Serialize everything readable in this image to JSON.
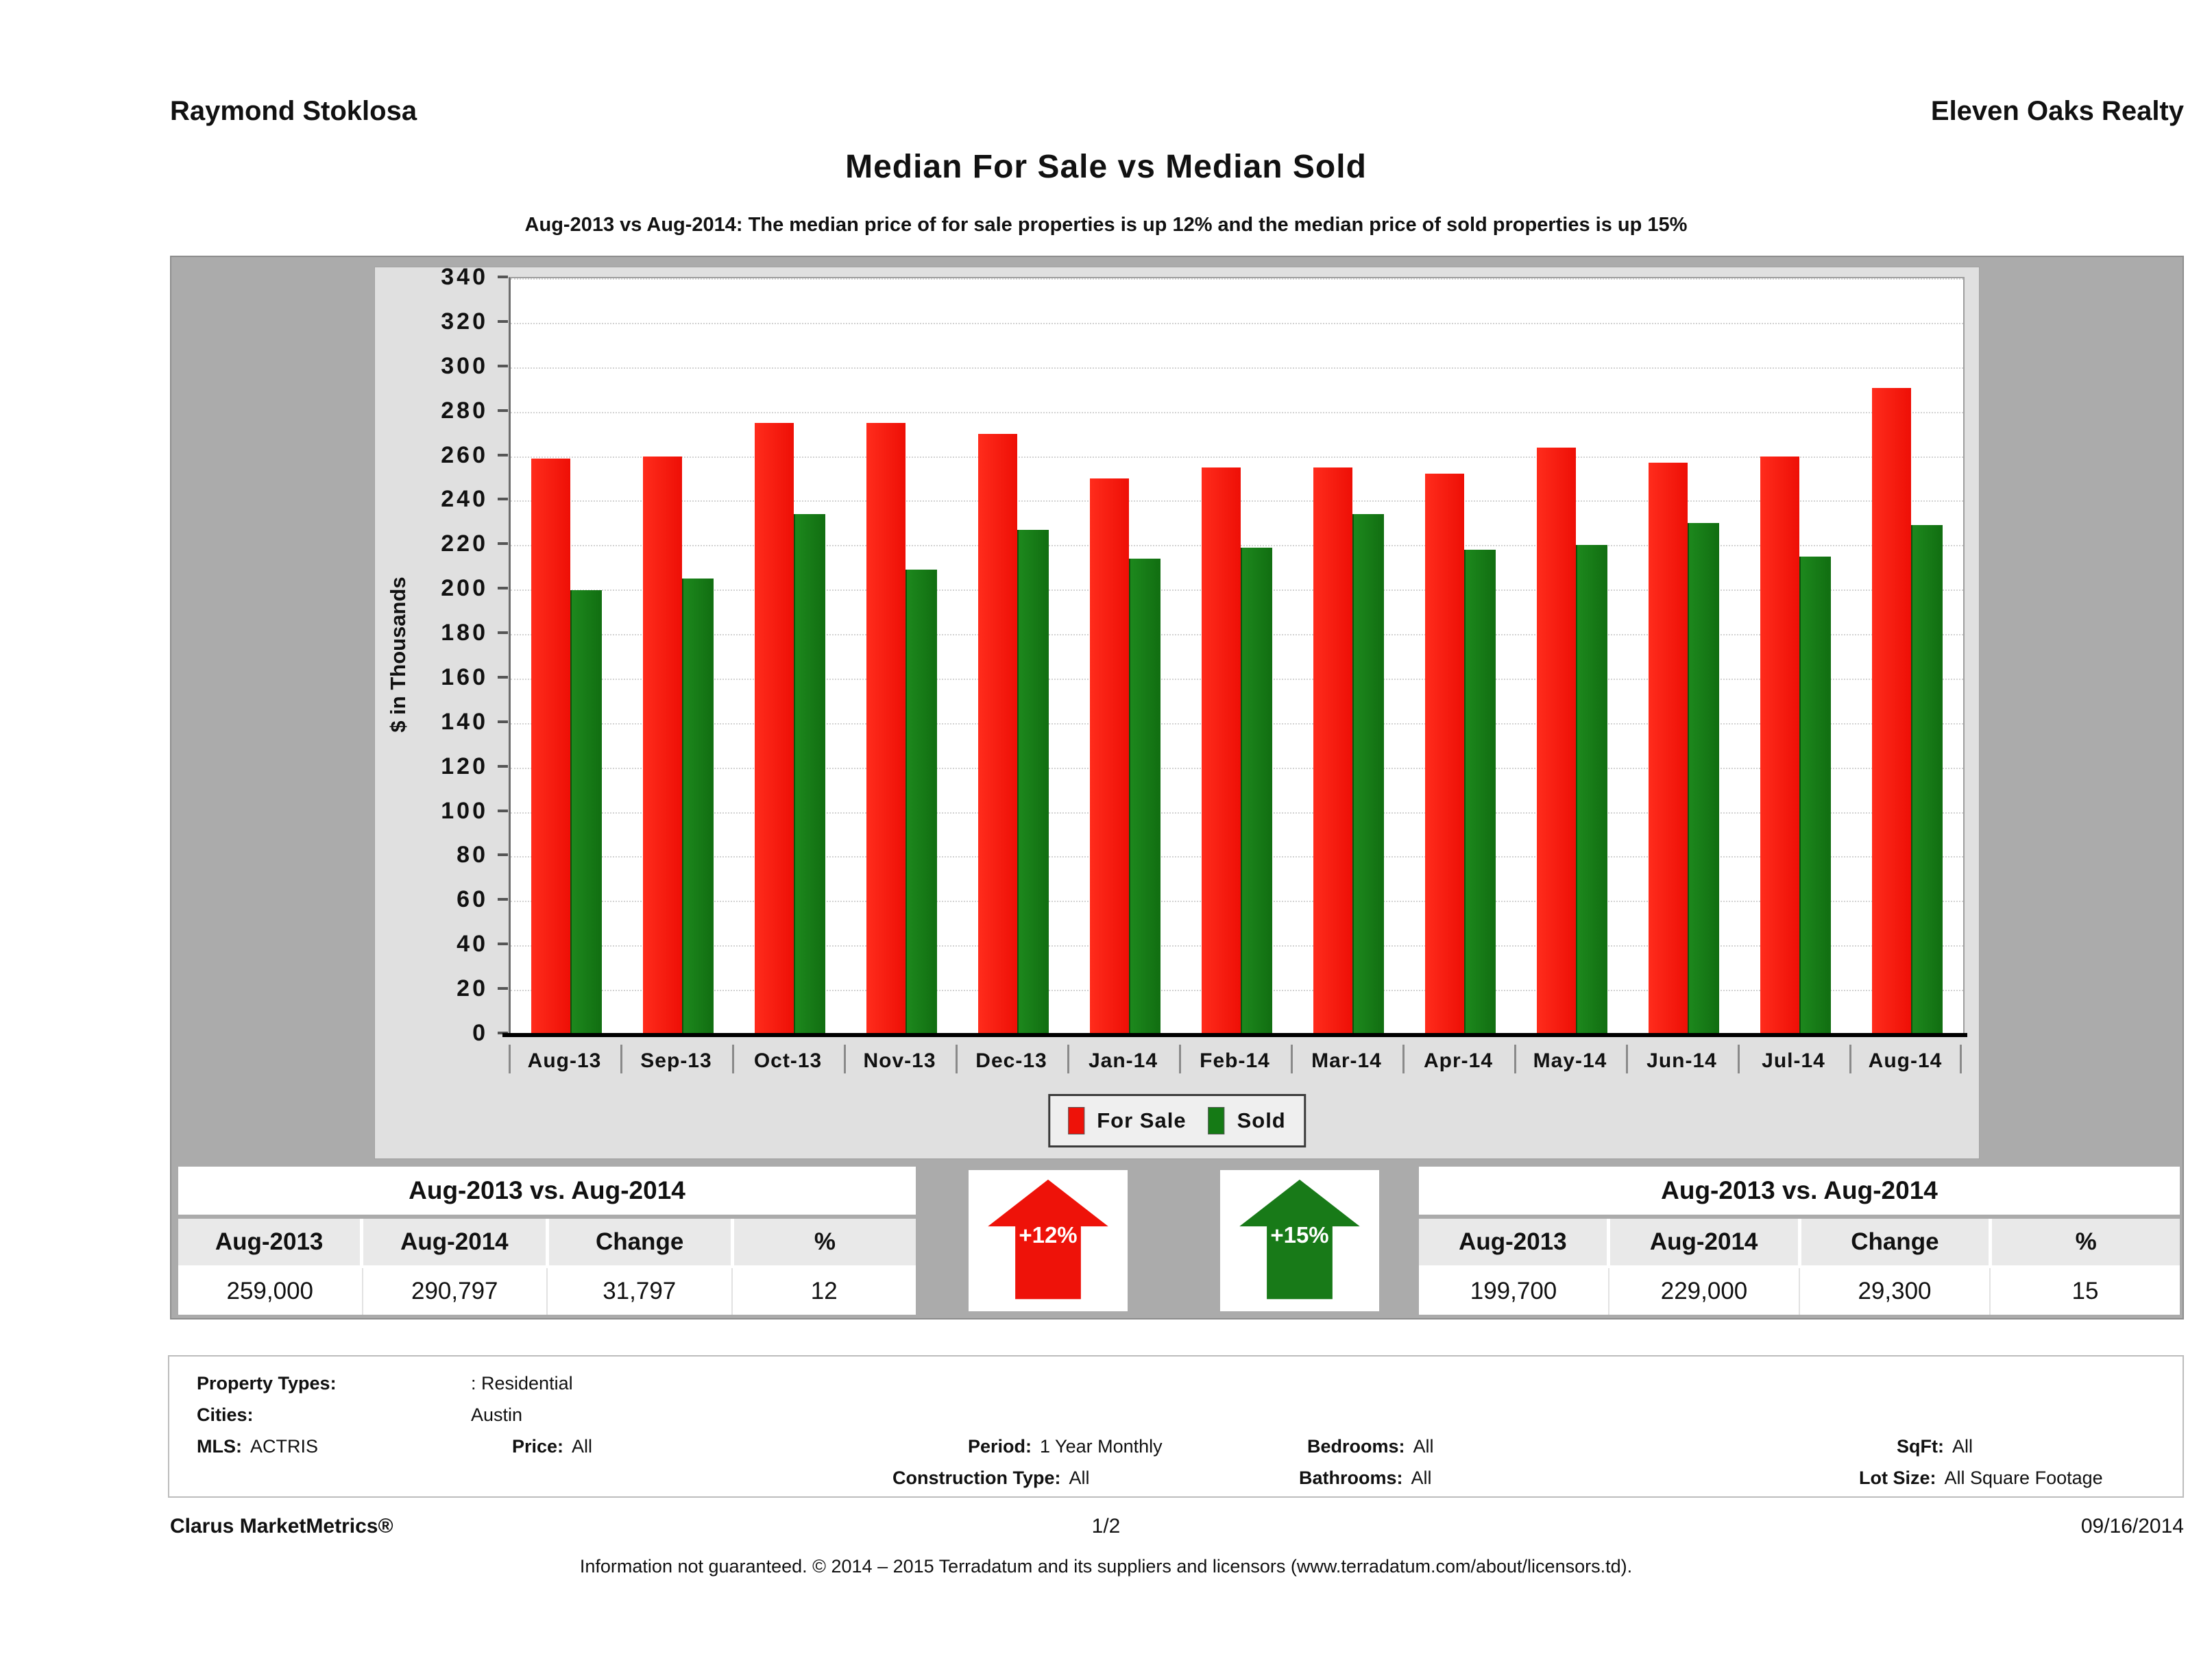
{
  "header": {
    "agent": "Raymond Stoklosa",
    "company": "Eleven Oaks Realty"
  },
  "title": "Median For Sale vs Median Sold",
  "subtitle": "Aug-2013 vs Aug-2014: The median price of for sale properties is up 12% and the median price of sold properties is up 15%",
  "chart_data": {
    "type": "bar",
    "categories": [
      "Aug-13",
      "Sep-13",
      "Oct-13",
      "Nov-13",
      "Dec-13",
      "Jan-14",
      "Feb-14",
      "Mar-14",
      "Apr-14",
      "May-14",
      "Jun-14",
      "Jul-14",
      "Aug-14"
    ],
    "series": [
      {
        "name": "For Sale",
        "color": "#ee1209",
        "values": [
          259,
          260,
          275,
          275,
          270,
          250,
          255,
          255,
          252,
          264,
          257,
          260,
          290.8
        ]
      },
      {
        "name": "Sold",
        "color": "#157a15",
        "values": [
          199.7,
          205,
          234,
          209,
          227,
          214,
          219,
          234,
          218,
          220,
          230,
          215,
          229
        ]
      }
    ],
    "xlabel": "",
    "ylabel": "$ in Thousands",
    "ylim": [
      0,
      340
    ],
    "ytick_step": 20,
    "grid": "horizontal dotted",
    "legend_position": "bottom-center"
  },
  "summary_left": {
    "title": "Aug-2013 vs. Aug-2014",
    "columns": [
      "Aug-2013",
      "Aug-2014",
      "Change",
      "%"
    ],
    "values": [
      "259,000",
      "290,797",
      "31,797",
      "12"
    ]
  },
  "summary_right": {
    "title": "Aug-2013 vs. Aug-2014",
    "columns": [
      "Aug-2013",
      "Aug-2014",
      "Change",
      "%"
    ],
    "values": [
      "199,700",
      "229,000",
      "29,300",
      "15"
    ]
  },
  "badges": {
    "for_sale_change": "+12%",
    "sold_change": "+15%"
  },
  "filters": {
    "property_types_label": "Property Types:",
    "property_types": ": Residential",
    "cities_label": "Cities:",
    "cities": "Austin",
    "mls_label": "MLS:",
    "mls": "ACTRIS",
    "price_label": "Price:",
    "price": "All",
    "period_label": "Period:",
    "period": "1 Year Monthly",
    "construction_label": "Construction Type:",
    "construction": "All",
    "bedrooms_label": "Bedrooms:",
    "bedrooms": "All",
    "bathrooms_label": "Bathrooms:",
    "bathrooms": "All",
    "sqft_label": "SqFt:",
    "sqft": "All",
    "lot_size_label": "Lot Size:",
    "lot_size": "All Square Footage"
  },
  "footer": {
    "product": "Clarus MarketMetrics®",
    "page": "1/2",
    "date": "09/16/2014",
    "disclaimer": "Information not guaranteed. © 2014 – 2015 Terradatum and its suppliers and licensors (www.terradatum.com/about/licensors.td)."
  }
}
